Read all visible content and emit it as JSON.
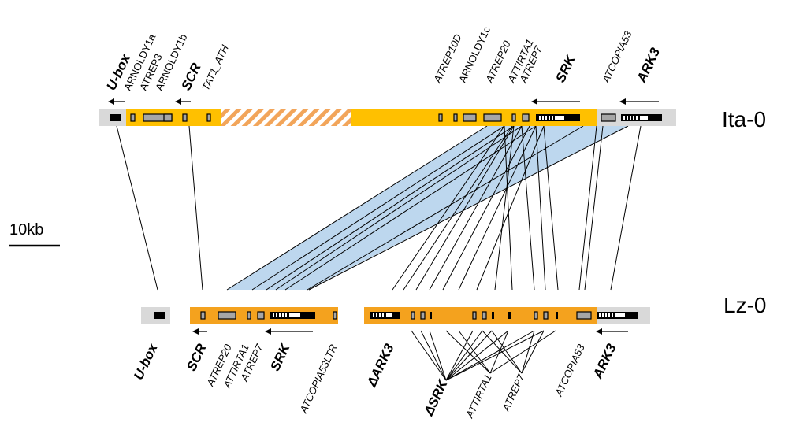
{
  "haplotypes": {
    "top": "Ita-0",
    "bottom": "Lz-0"
  },
  "scale_bar": {
    "label": "10kb"
  },
  "top_labels": {
    "ubox": "U-box",
    "arnoldy1a": "ARNOLDY1a",
    "atrep3": "ATREP3",
    "arnoldy1b": "ARNOLDY1b",
    "scr": "SCR",
    "tat1": "TAT1_ATH",
    "atrep10d": "ATREP10D",
    "arnoldy1c": "ARNOLDY1c",
    "atrep20": "ATREP20",
    "attirta1": "ATTIRTA1",
    "atrep7": "ATREP7",
    "srk": "SRK",
    "atcopia53": "ATCOPIA53",
    "ark3": "ARK3"
  },
  "bottom_labels": {
    "ubox": "U-box",
    "scr": "SCR",
    "atrep20": "ATREP20",
    "attirta1": "ATTIRTA1",
    "atrep7": "ATREP7",
    "srk": "SRK",
    "atcopia53ltr": "ATCOPIA53LTR",
    "dark3": "ΔARK3",
    "dsrk": "ΔSRK",
    "attirta1b": "ATTIRTA1",
    "atrep7b": "ATREP7",
    "atcopia53": "ATCOPIA53",
    "ark3": "ARK3"
  },
  "colors": {
    "ita_track": "#ffc000",
    "lz_track": "#f4a21e",
    "hatch": "#f2a55a",
    "background_bar": "#d9d9d9",
    "te_box": "#a6a6a6",
    "synteny": "#bdd7ee"
  }
}
